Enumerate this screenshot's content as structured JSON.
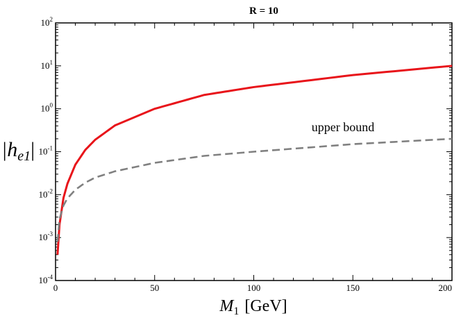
{
  "chart_data": {
    "type": "line",
    "title": "R = 10",
    "xlabel_main": "M",
    "xlabel_sub": "1",
    "xlabel_unit": "[GeV]",
    "ylabel_main": "|h",
    "ylabel_sub": "e1",
    "ylabel_end": "|",
    "xlim": [
      0,
      200
    ],
    "ylim": [
      0.0001,
      100
    ],
    "yscale": "log",
    "grid": false,
    "x_ticks": [
      "0",
      "50",
      "100",
      "150",
      "200"
    ],
    "y_ticks": [
      {
        "base": "10",
        "exp": "-4"
      },
      {
        "base": "10",
        "exp": "-3"
      },
      {
        "base": "10",
        "exp": "-2"
      },
      {
        "base": "10",
        "exp": "-1"
      },
      {
        "base": "10",
        "exp": "0"
      },
      {
        "base": "10",
        "exp": "1"
      },
      {
        "base": "10",
        "exp": "2"
      }
    ],
    "series": [
      {
        "color": "#e8141a",
        "style": "solid",
        "x": [
          1,
          2,
          4,
          6,
          10,
          15,
          20,
          30,
          50,
          75,
          100,
          150,
          200
        ],
        "y": [
          0.0004,
          0.002,
          0.0084,
          0.018,
          0.05,
          0.11,
          0.19,
          0.41,
          1.0,
          2.1,
          3.2,
          6.1,
          10.0
        ]
      },
      {
        "color": "#808080",
        "style": "dashed",
        "x": [
          1,
          2,
          4,
          6,
          10,
          15,
          20,
          30,
          50,
          75,
          100,
          150,
          200
        ],
        "y": [
          0.0008,
          0.0027,
          0.0056,
          0.0082,
          0.013,
          0.019,
          0.025,
          0.035,
          0.055,
          0.08,
          0.1,
          0.15,
          0.2
        ]
      }
    ],
    "annotations": [
      {
        "text": "upper bound",
        "x": 145,
        "y": 0.3
      }
    ]
  }
}
